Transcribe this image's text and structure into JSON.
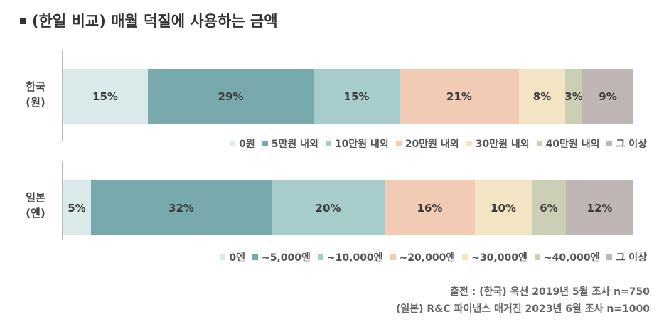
{
  "title": "(한일 비교) 매월 덕질에 사용하는 금액",
  "chart_data": {
    "type": "bar",
    "orientation": "horizontal-stacked-100",
    "rows": [
      {
        "label_line1": "한국",
        "label_line2": "(원)",
        "segments": [
          {
            "value": 15,
            "label": "15%",
            "legend": "0원",
            "color": "#dae9ea"
          },
          {
            "value": 29,
            "label": "29%",
            "legend": "5만원 내외",
            "color": "#78a9ac"
          },
          {
            "value": 15,
            "label": "15%",
            "legend": "10만원 내외",
            "color": "#a6cccb"
          },
          {
            "value": 21,
            "label": "21%",
            "legend": "20만원 내외",
            "color": "#f1cbb3"
          },
          {
            "value": 8,
            "label": "8%",
            "legend": "30만원 내외",
            "color": "#f3e5c4"
          },
          {
            "value": 3,
            "label": "3%",
            "legend": "40만원 내외",
            "color": "#cbcfb5"
          },
          {
            "value": 9,
            "label": "9%",
            "legend": "그 이상",
            "color": "#bfb5b4"
          }
        ]
      },
      {
        "label_line1": "일본",
        "label_line2": "(엔)",
        "segments": [
          {
            "value": 5,
            "label": "5%",
            "legend": "0엔",
            "color": "#dae9ea"
          },
          {
            "value": 32,
            "label": "32%",
            "legend": "~5,000엔",
            "color": "#78a9ac"
          },
          {
            "value": 20,
            "label": "20%",
            "legend": "~10,000엔",
            "color": "#a6cccb"
          },
          {
            "value": 16,
            "label": "16%",
            "legend": "~20,000엔",
            "color": "#f1cbb3"
          },
          {
            "value": 10,
            "label": "10%",
            "legend": "~30,000엔",
            "color": "#f3e5c4"
          },
          {
            "value": 6,
            "label": "6%",
            "legend": "~40,000엔",
            "color": "#cbcfb5"
          },
          {
            "value": 12,
            "label": "12%",
            "legend": "그 이상",
            "color": "#bfb5b4"
          }
        ]
      }
    ]
  },
  "source": {
    "line1": "출전 : (한국) 옥션 2019년 5월 조사  n=750",
    "line2": "(일본) R&C 파이낸스 매거진 2023년 6월 조사 n=1000"
  }
}
